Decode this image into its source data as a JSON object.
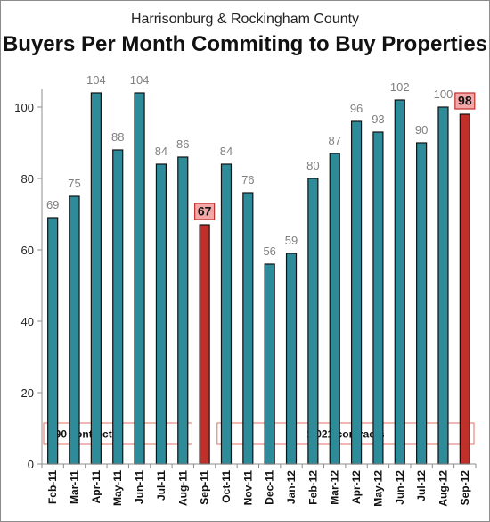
{
  "header": {
    "subtitle": "Harrisonburg & Rockingham County",
    "title": "Buyers Per Month Commiting to Buy Properties"
  },
  "colors": {
    "bar": "#2e8b9a",
    "bar_highlight": "#c0302b",
    "bar_outline": "#111111",
    "callout_fill": "#f4a7a7",
    "callout_border": "#c0302b",
    "band_border": "#e07060"
  },
  "chart_data": {
    "type": "bar",
    "title": "Buyers Per Month Commiting to Buy Properties",
    "subtitle": "Harrisonburg & Rockingham County",
    "xlabel": "",
    "ylabel": "",
    "ylim": [
      0,
      110
    ],
    "yticks": [
      0,
      20,
      40,
      60,
      80,
      100
    ],
    "grid": false,
    "categories": [
      "Feb-11",
      "Mar-11",
      "Apr-11",
      "May-11",
      "Jun-11",
      "Jul-11",
      "Aug-11",
      "Sep-11",
      "Oct-11",
      "Nov-11",
      "Dec-11",
      "Jan-12",
      "Feb-12",
      "Mar-12",
      "Apr-12",
      "May-12",
      "Jun-12",
      "Jul-12",
      "Aug-12",
      "Sep-12"
    ],
    "values": [
      69,
      75,
      104,
      88,
      104,
      84,
      86,
      67,
      84,
      76,
      56,
      59,
      80,
      87,
      96,
      93,
      102,
      90,
      100,
      98
    ],
    "highlighted": [
      "Sep-11",
      "Sep-12"
    ],
    "annotations": [
      {
        "text": "890 contracts",
        "from": "Feb-11",
        "to": "Aug-11"
      },
      {
        "text": "1,021 contracts",
        "from": "Oct-11",
        "to": "Sep-12"
      }
    ]
  }
}
